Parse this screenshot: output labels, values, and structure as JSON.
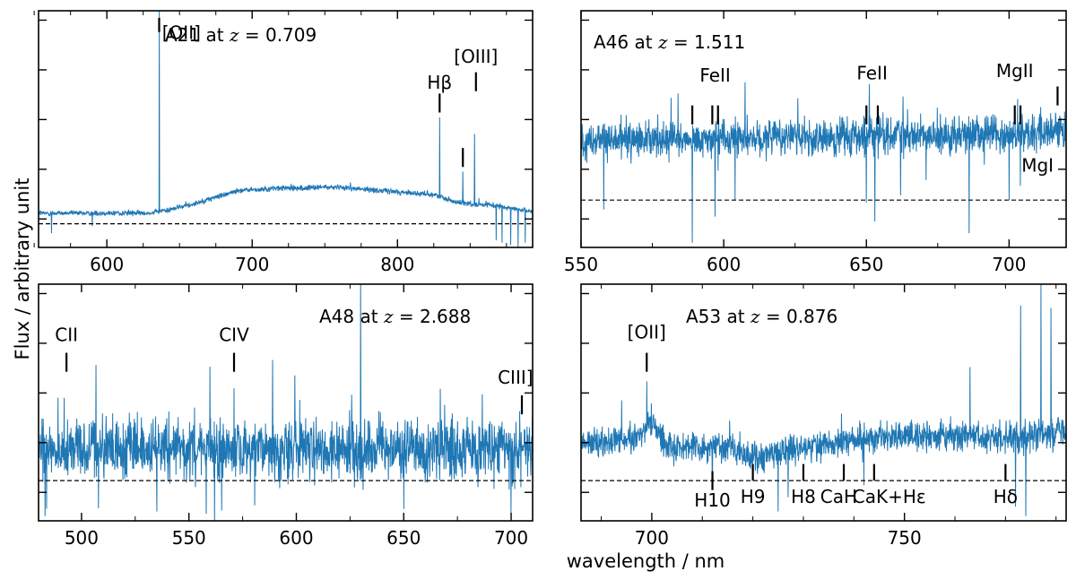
{
  "figure": {
    "ylabel": "Flux / arbitrary unit",
    "xlabel": "wavelength / nm",
    "line_color": "#1f77b4"
  },
  "chart_data": [
    {
      "type": "line",
      "id": "A21",
      "title_name": "A21 at ",
      "title_z": "z",
      "title_value": " = 0.709",
      "xlim": [
        553,
        893
      ],
      "xticks": [
        600,
        700,
        800
      ],
      "xminor": [
        550,
        575,
        625,
        650,
        675,
        725,
        750,
        775,
        825,
        850,
        875
      ],
      "ylim": [
        0,
        10
      ],
      "baseline": 1.0,
      "continuum": [
        [
          553,
          1.45
        ],
        [
          600,
          1.45
        ],
        [
          628,
          1.45
        ],
        [
          640,
          1.55
        ],
        [
          660,
          1.85
        ],
        [
          690,
          2.4
        ],
        [
          720,
          2.5
        ],
        [
          760,
          2.55
        ],
        [
          800,
          2.35
        ],
        [
          828,
          2.2
        ],
        [
          840,
          1.9
        ],
        [
          870,
          1.75
        ],
        [
          893,
          1.5
        ]
      ],
      "noise": 0.08,
      "spikes": [
        [
          636,
          10.2
        ],
        [
          829,
          5.5
        ],
        [
          845,
          3.2
        ],
        [
          853,
          4.8
        ]
      ],
      "dips": [
        [
          562,
          0.6
        ],
        [
          590,
          0.9
        ],
        [
          868,
          0.3
        ],
        [
          872,
          0.2
        ],
        [
          878,
          0.1
        ],
        [
          883,
          0.0
        ],
        [
          888,
          0.2
        ]
      ],
      "lines": [
        {
          "label": "[OII]",
          "x": 636,
          "label_x": 638,
          "label_y": 8.8,
          "tick_y1": 9.1,
          "tick_y2": 9.7,
          "anchor": "start"
        },
        {
          "label": "Hβ",
          "x": 829,
          "label_x": 829,
          "label_y": 6.7,
          "tick_y1": 5.7,
          "tick_y2": 6.5,
          "anchor": "middle"
        },
        {
          "label": "",
          "x": 845,
          "label_x": 845,
          "label_y": 0,
          "tick_y1": 3.4,
          "tick_y2": 4.2,
          "anchor": "middle"
        },
        {
          "label": "[OIII]",
          "x": 854,
          "label_x": 854,
          "label_y": 7.8,
          "tick_y1": 6.6,
          "tick_y2": 7.4,
          "anchor": "middle"
        }
      ]
    },
    {
      "type": "line",
      "id": "A46",
      "title_name": "A46 at ",
      "title_z": "z",
      "title_value": " = 1.511",
      "xlim": [
        550,
        720
      ],
      "xticks": [
        550,
        600,
        650,
        700
      ],
      "xminor": [
        575,
        625,
        675
      ],
      "ylim": [
        0,
        10
      ],
      "baseline": 2.0,
      "continuum": [
        [
          550,
          4.5
        ],
        [
          600,
          4.6
        ],
        [
          650,
          4.7
        ],
        [
          700,
          4.8
        ],
        [
          720,
          5.0
        ]
      ],
      "noise": 0.55,
      "spikes": [
        [
          584,
          6.5
        ],
        [
          626,
          6.3
        ],
        [
          651,
          6.9
        ],
        [
          704,
          6.9
        ]
      ],
      "dips": [
        [
          558,
          1.6
        ],
        [
          589,
          0.2
        ],
        [
          597,
          1.3
        ],
        [
          604,
          2.0
        ],
        [
          650,
          1.9
        ],
        [
          653,
          1.1
        ],
        [
          662,
          2.2
        ],
        [
          686,
          0.6
        ],
        [
          700,
          2.0
        ],
        [
          704,
          2.6
        ]
      ],
      "lines": [
        {
          "label": "FeII",
          "x": 589,
          "label_x": 597,
          "label_y": 7.0,
          "tick_y1": 5.2,
          "tick_y2": 6.0,
          "anchor": "middle"
        },
        {
          "label": "",
          "x": 596,
          "label_x": 0,
          "label_y": 0,
          "tick_y1": 5.2,
          "tick_y2": 6.0,
          "anchor": "middle"
        },
        {
          "label": "",
          "x": 598,
          "label_x": 0,
          "label_y": 0,
          "tick_y1": 5.2,
          "tick_y2": 6.0,
          "anchor": "middle"
        },
        {
          "label": "FeII",
          "x": 650,
          "label_x": 652,
          "label_y": 7.1,
          "tick_y1": 5.2,
          "tick_y2": 6.0,
          "anchor": "middle"
        },
        {
          "label": "",
          "x": 654,
          "label_x": 0,
          "label_y": 0,
          "tick_y1": 5.2,
          "tick_y2": 6.0,
          "anchor": "middle"
        },
        {
          "label": "MgII",
          "x": 702,
          "label_x": 702,
          "label_y": 7.2,
          "tick_y1": 5.2,
          "tick_y2": 6.0,
          "anchor": "middle"
        },
        {
          "label": "",
          "x": 704,
          "label_x": 0,
          "label_y": 0,
          "tick_y1": 5.2,
          "tick_y2": 6.0,
          "anchor": "middle"
        },
        {
          "label": "",
          "x": 717,
          "label_x": 0,
          "label_y": 0,
          "tick_y1": 6.0,
          "tick_y2": 6.8,
          "anchor": "middle"
        },
        {
          "label": "MgI",
          "x": 717,
          "label_x": 710,
          "label_y": 3.2,
          "tick_y1": 0,
          "tick_y2": 0,
          "anchor": "middle"
        }
      ]
    },
    {
      "type": "line",
      "id": "A48",
      "title_name": "A48 at ",
      "title_z": "z",
      "title_value": " = 2.688",
      "xlim": [
        480,
        710
      ],
      "xticks": [
        500,
        550,
        600,
        650,
        700
      ],
      "xminor": [
        525,
        575,
        625,
        675
      ],
      "ylim": [
        0,
        10
      ],
      "baseline": 1.7,
      "continuum": [
        [
          480,
          3.0
        ],
        [
          600,
          3.0
        ],
        [
          710,
          3.0
        ]
      ],
      "noise": 0.9,
      "spikes": [
        [
          492,
          5.2
        ],
        [
          571,
          5.6
        ],
        [
          589,
          6.8
        ],
        [
          630,
          10.3
        ],
        [
          700,
          5.1
        ]
      ],
      "dips": [
        [
          483,
          0.2
        ],
        [
          535,
          0.4
        ],
        [
          558,
          0.3
        ],
        [
          562,
          -0.2
        ],
        [
          650,
          0.5
        ],
        [
          700,
          0.3
        ]
      ],
      "lines": [
        {
          "label": "CII",
          "x": 493,
          "label_x": 493,
          "label_y": 7.6,
          "tick_y1": 6.3,
          "tick_y2": 7.1,
          "anchor": "middle"
        },
        {
          "label": "CIV",
          "x": 571,
          "label_x": 571,
          "label_y": 7.6,
          "tick_y1": 6.3,
          "tick_y2": 7.1,
          "anchor": "middle"
        },
        {
          "label": "CIII]",
          "x": 705,
          "label_x": 702,
          "label_y": 5.8,
          "tick_y1": 4.5,
          "tick_y2": 5.3,
          "anchor": "middle"
        }
      ]
    },
    {
      "type": "line",
      "id": "A53",
      "title_name": "A53 at ",
      "title_z": "z",
      "title_value": " = 0.876",
      "xlim": [
        686,
        782
      ],
      "xticks": [
        700,
        750
      ],
      "xminor": [
        690,
        710,
        720,
        730,
        740,
        760,
        770,
        780
      ],
      "ylim": [
        0,
        10
      ],
      "baseline": 1.7,
      "continuum": [
        [
          686,
          3.3
        ],
        [
          697,
          3.5
        ],
        [
          700,
          4.2
        ],
        [
          703,
          3.2
        ],
        [
          715,
          3.1
        ],
        [
          720,
          2.7
        ],
        [
          730,
          3.1
        ],
        [
          740,
          3.4
        ],
        [
          750,
          3.6
        ],
        [
          760,
          3.6
        ],
        [
          770,
          3.5
        ],
        [
          776,
          3.6
        ],
        [
          782,
          3.8
        ]
      ],
      "noise": 0.45,
      "spikes": [
        [
          699,
          5.9
        ],
        [
          773,
          9.1
        ],
        [
          777,
          10.1
        ],
        [
          779,
          9.0
        ],
        [
          763,
          6.5
        ]
      ],
      "dips": [
        [
          712,
          1.4
        ],
        [
          725,
          0.4
        ],
        [
          727,
          1.0
        ],
        [
          742,
          1.5
        ],
        [
          772,
          0.6
        ],
        [
          774,
          0.2
        ]
      ],
      "lines": [
        {
          "label": "[OII]",
          "x": 699,
          "label_x": 699,
          "label_y": 7.7,
          "tick_y1": 6.3,
          "tick_y2": 7.1,
          "anchor": "middle"
        },
        {
          "label": "H10",
          "x": 712,
          "label_x": 712,
          "label_y": 0.6,
          "tick_y1": 1.3,
          "tick_y2": 2.1,
          "anchor": "middle"
        },
        {
          "label": "H9",
          "x": 720,
          "label_x": 720,
          "label_y": 0.75,
          "tick_y1": 1.7,
          "tick_y2": 2.4,
          "anchor": "middle"
        },
        {
          "label": "H8",
          "x": 730,
          "label_x": 730,
          "label_y": 0.75,
          "tick_y1": 1.7,
          "tick_y2": 2.4,
          "anchor": "middle"
        },
        {
          "label": "CaH",
          "x": 738,
          "label_x": 737,
          "label_y": 0.75,
          "tick_y1": 1.7,
          "tick_y2": 2.4,
          "anchor": "middle"
        },
        {
          "label": "CaK+Hε",
          "x": 744,
          "label_x": 747,
          "label_y": 0.75,
          "tick_y1": 1.7,
          "tick_y2": 2.4,
          "anchor": "middle"
        },
        {
          "label": "Hδ",
          "x": 770,
          "label_x": 770,
          "label_y": 0.75,
          "tick_y1": 1.7,
          "tick_y2": 2.4,
          "anchor": "middle"
        }
      ]
    }
  ]
}
